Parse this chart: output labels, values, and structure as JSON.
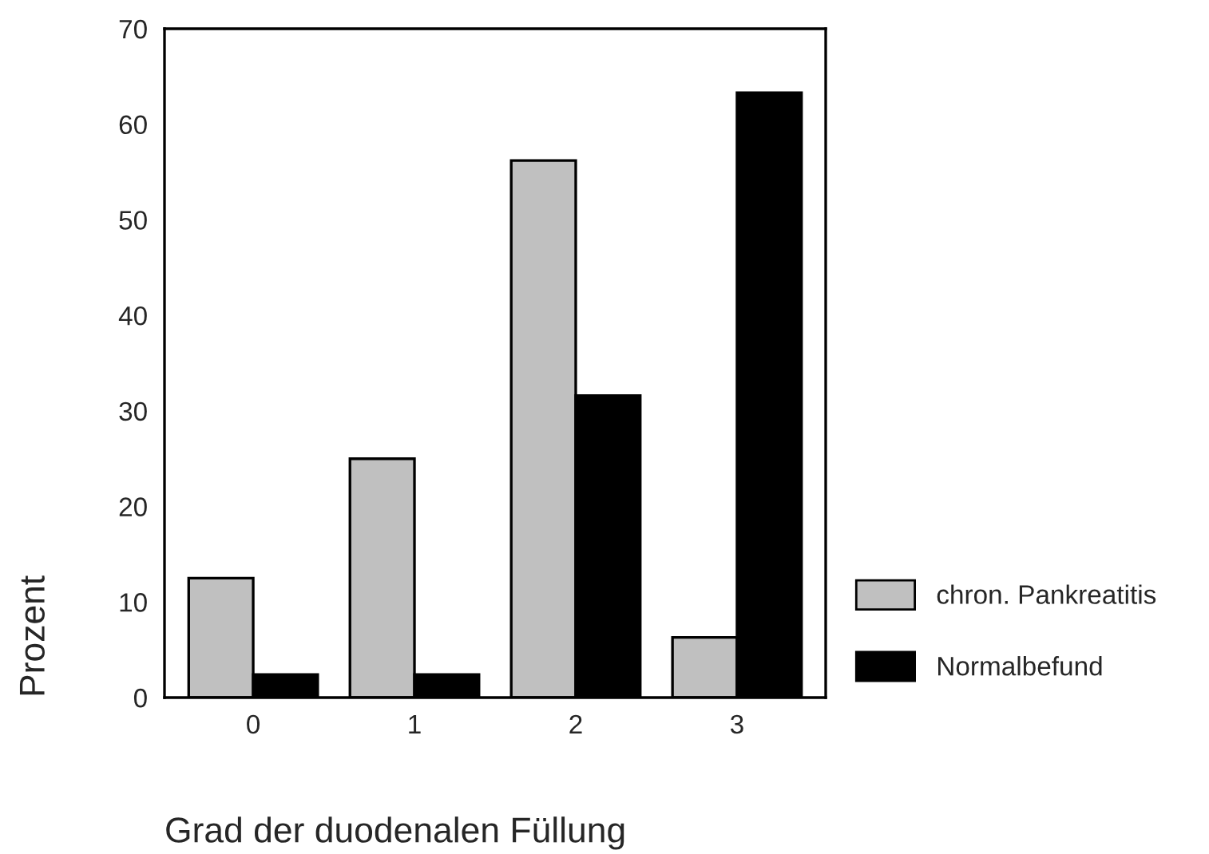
{
  "chart_data": {
    "type": "bar",
    "xlabel": "Grad der duodenalen Füllung",
    "ylabel": "Prozent",
    "categories": [
      "0",
      "1",
      "2",
      "3"
    ],
    "series": [
      {
        "name": "chron. Pankreatitis",
        "color": "#c0c0c0",
        "values": [
          12.5,
          25,
          56.2,
          6.3
        ]
      },
      {
        "name": "Normalbefund",
        "color": "#000000",
        "values": [
          2.4,
          2.4,
          31.6,
          63.3
        ]
      }
    ],
    "ylim": [
      0,
      70
    ],
    "yticks": [
      0,
      10,
      20,
      30,
      40,
      50,
      60,
      70
    ],
    "grid": false,
    "legend": "right"
  }
}
